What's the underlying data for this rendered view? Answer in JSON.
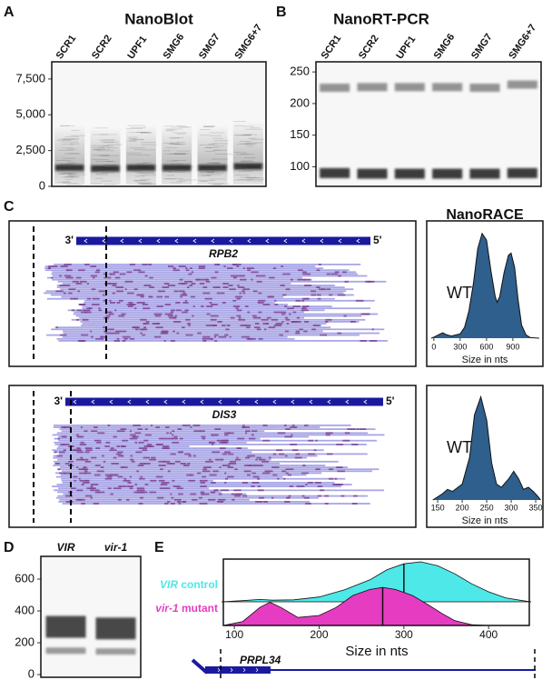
{
  "chart_data": [
    {
      "type": "blot",
      "panel": "A",
      "title": "NanoBlot",
      "categories": [
        "SCR1",
        "SCR2",
        "UPF1",
        "SMG6",
        "SMG7",
        "SMG6+7"
      ],
      "values": [
        1300,
        1250,
        1300,
        1300,
        1300,
        1400
      ],
      "color": "#1b1b1b",
      "ylim": [
        0,
        8700
      ],
      "yticks": [
        0,
        {
          "value": 2500,
          "label": "2,500"
        },
        {
          "value": 5000,
          "label": "5,000"
        },
        {
          "value": 7500,
          "label": "7,500"
        }
      ]
    },
    {
      "type": "blot",
      "panel": "B",
      "title": "NanoRT-PCR",
      "categories": [
        "SCR1",
        "SCR2",
        "UPF1",
        "SMG6",
        "SMG7",
        "SMG6+7"
      ],
      "values": [
        [
          90,
          225
        ],
        [
          89,
          226
        ],
        [
          89,
          226
        ],
        [
          89,
          226
        ],
        [
          89,
          225
        ],
        [
          90,
          230
        ]
      ],
      "color": "#1b1b1b",
      "ylim": [
        69,
        266
      ],
      "yticks": [
        100,
        150,
        200,
        250
      ]
    },
    {
      "type": "alignment",
      "panel": "C",
      "gene": "RPB2",
      "ends": [
        "3'",
        "5'"
      ],
      "color": "#1a1a9e"
    },
    {
      "type": "area",
      "title": "NanoRACE",
      "label": "WT",
      "xlabel": "Size in nts",
      "x": [
        -30,
        0,
        50,
        100,
        150,
        200,
        300,
        350,
        400,
        450,
        500,
        550,
        600,
        650,
        700,
        720,
        750,
        800,
        850,
        880,
        920,
        960,
        1000,
        1050,
        1100,
        1200
      ],
      "values": [
        0,
        0.01,
        0.03,
        0.05,
        0.03,
        0.02,
        0.04,
        0.1,
        0.25,
        0.5,
        0.82,
        0.96,
        0.9,
        0.62,
        0.38,
        0.33,
        0.38,
        0.6,
        0.76,
        0.78,
        0.65,
        0.35,
        0.12,
        0.03,
        0.005,
        0
      ],
      "xlim": [
        -40,
        1222
      ],
      "ylim": [
        0,
        1
      ],
      "xticks": [
        0,
        300,
        600,
        900
      ],
      "color": "#2e5f8d"
    },
    {
      "type": "alignment",
      "gene": "DIS3",
      "ends": [
        "3'",
        "5'"
      ],
      "color": "#1a1a9e"
    },
    {
      "type": "area",
      "label": "WT",
      "xlabel": "Size in nts",
      "x": [
        140,
        160,
        170,
        180,
        200,
        215,
        225,
        238,
        250,
        260,
        270,
        280,
        295,
        305,
        315,
        325,
        335,
        345,
        355,
        360
      ],
      "values": [
        0,
        0.06,
        0.1,
        0.08,
        0.15,
        0.4,
        0.8,
        0.97,
        0.75,
        0.35,
        0.15,
        0.12,
        0.2,
        0.27,
        0.2,
        0.1,
        0.12,
        0.08,
        0.03,
        0
      ],
      "xlim": [
        135,
        361
      ],
      "ylim": [
        0,
        1
      ],
      "xticks": [
        150,
        200,
        250,
        300,
        350
      ],
      "color": "#2e5f8d"
    },
    {
      "type": "blot",
      "panel": "D",
      "categories": [
        "VIR",
        "vir-1"
      ],
      "values": [
        [
          300,
          150
        ],
        [
          290,
          145
        ]
      ],
      "color": "#2a2a2a",
      "ylim": [
        -17,
        743
      ],
      "yticks": [
        0,
        200,
        400,
        600
      ]
    },
    {
      "type": "ridge",
      "panel": "E",
      "xlabel": "Size in nts",
      "xlim": [
        87,
        448
      ],
      "xticks": [
        100,
        200,
        300,
        400
      ],
      "ylim": [
        0,
        1
      ],
      "gene": "PRPL34",
      "series": [
        {
          "name": "VIR control",
          "color": "#4ee8e8",
          "median": 300,
          "x": [
            85,
            110,
            130,
            145,
            170,
            200,
            230,
            260,
            280,
            300,
            320,
            340,
            360,
            380,
            400,
            420,
            440,
            450
          ],
          "values": [
            0,
            0.03,
            0.06,
            0.04,
            0.05,
            0.12,
            0.3,
            0.55,
            0.8,
            0.95,
            1,
            0.9,
            0.7,
            0.45,
            0.25,
            0.1,
            0.03,
            0
          ]
        },
        {
          "name": "vir-1 mutant",
          "color": "#e63cc2",
          "median": 275,
          "x": [
            87,
            110,
            130,
            142,
            155,
            175,
            200,
            220,
            240,
            260,
            275,
            290,
            310,
            330,
            345,
            360,
            380,
            400
          ],
          "values": [
            0,
            0.1,
            0.45,
            0.58,
            0.45,
            0.2,
            0.25,
            0.45,
            0.75,
            0.9,
            0.95,
            0.9,
            0.75,
            0.5,
            0.3,
            0.12,
            0.02,
            0
          ]
        }
      ]
    }
  ]
}
